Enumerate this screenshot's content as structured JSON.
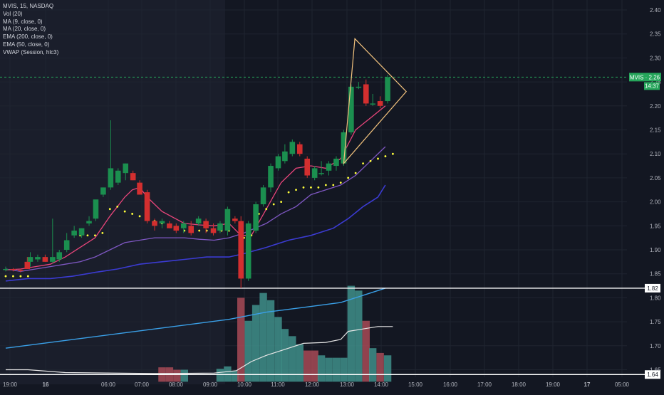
{
  "legend": {
    "symbol": "MVIS, 15, NASDAQ",
    "indicators": [
      "Vol (20)",
      "MA (9, close, 0)",
      "MA (20, close, 0)",
      "EMA (200, close, 0)",
      "EMA (50, close, 0)",
      "VWAP (Session, hlc3)"
    ]
  },
  "price_tag": {
    "label": "MVIS · 2.26",
    "value": 2.26,
    "countdown": "14:37"
  },
  "level_tags": [
    {
      "label": "1.82",
      "value": 1.82
    },
    {
      "label": "1.64",
      "value": 1.64
    }
  ],
  "colors": {
    "background": "#131722",
    "session_shade": "#1a1e2b",
    "grid": "#1f2430",
    "up": "#26a69a",
    "up_body": "#1b8f4f",
    "down": "#d32f2f",
    "vol_up": "#3f8f8a",
    "vol_down": "#a84a56",
    "ma9": "#e8457a",
    "ma20": "#7e57c2",
    "ema200": "#3aa0e8",
    "ema50": "#3b3bd1",
    "vwap": "#ffff3b",
    "last_price": "#26a65b",
    "triangle": "#f2c27d",
    "level_line": "#ffffff"
  },
  "chart_data": {
    "type": "candlestick",
    "x_axis": {
      "ticks": [
        "19:00",
        "16",
        "06:00",
        "07:00",
        "08:00",
        "09:00",
        "10:00",
        "11:00",
        "12:00",
        "13:00",
        "14:00",
        "15:00",
        "16:00",
        "17:00",
        "18:00",
        "19:00",
        "17",
        "05:00"
      ]
    },
    "y_axis": {
      "ticks": [
        "2.40",
        "2.35",
        "2.30",
        "2.25",
        "2.20",
        "2.15",
        "2.10",
        "2.05",
        "2.00",
        "1.95",
        "1.90",
        "1.85",
        "1.80",
        "1.75",
        "1.70",
        "1.65"
      ],
      "ylim": [
        1.625,
        2.415
      ]
    },
    "candles": [
      {
        "t": 0.0,
        "o": 1.86,
        "h": 1.865,
        "l": 1.855,
        "c": 1.86
      },
      {
        "t": 1.0,
        "o": 1.86,
        "h": 1.862,
        "l": 1.855,
        "c": 1.858
      },
      {
        "t": 2.0,
        "o": 1.858,
        "h": 1.86,
        "l": 1.853,
        "c": 1.857
      },
      {
        "t": 2.9,
        "o": 1.875,
        "h": 1.885,
        "l": 1.86,
        "c": 1.86
      },
      {
        "t": 3.3,
        "o": 1.875,
        "h": 1.895,
        "l": 1.865,
        "c": 1.885
      },
      {
        "t": 4.3,
        "o": 1.88,
        "h": 1.89,
        "l": 1.875,
        "c": 1.885
      },
      {
        "t": 5.3,
        "o": 1.885,
        "h": 1.89,
        "l": 1.875,
        "c": 1.875
      },
      {
        "t": 6.3,
        "o": 1.875,
        "h": 1.965,
        "l": 1.872,
        "c": 1.885
      },
      {
        "t": 7.2,
        "o": 1.88,
        "h": 1.9,
        "l": 1.875,
        "c": 1.895
      },
      {
        "t": 8.2,
        "o": 1.9,
        "h": 1.935,
        "l": 1.895,
        "c": 1.92
      },
      {
        "t": 9.2,
        "o": 1.93,
        "h": 1.95,
        "l": 1.925,
        "c": 1.94
      },
      {
        "t": 10.2,
        "o": 1.93,
        "h": 1.945,
        "l": 1.925,
        "c": 1.945
      },
      {
        "t": 11.2,
        "o": 1.955,
        "h": 1.97,
        "l": 1.95,
        "c": 1.96
      },
      {
        "t": 12.1,
        "o": 1.965,
        "h": 2.0,
        "l": 1.96,
        "c": 2.005
      },
      {
        "t": 13.1,
        "o": 2.015,
        "h": 2.03,
        "l": 2.01,
        "c": 2.03
      },
      {
        "t": 14.1,
        "o": 2.03,
        "h": 2.17,
        "l": 2.025,
        "c": 2.07
      },
      {
        "t": 15.1,
        "o": 2.04,
        "h": 2.07,
        "l": 2.035,
        "c": 2.065
      },
      {
        "t": 16.1,
        "o": 2.06,
        "h": 2.08,
        "l": 2.045,
        "c": 2.08
      },
      {
        "t": 17.1,
        "o": 2.06,
        "h": 2.065,
        "l": 2.045,
        "c": 2.045
      },
      {
        "t": 18.0,
        "o": 2.04,
        "h": 2.045,
        "l": 2.015,
        "c": 2.015
      },
      {
        "t": 19.0,
        "o": 2.02,
        "h": 2.025,
        "l": 1.955,
        "c": 1.96
      },
      {
        "t": 20.0,
        "o": 1.96,
        "h": 1.965,
        "l": 1.94,
        "c": 1.95
      },
      {
        "t": 21.0,
        "o": 1.955,
        "h": 1.965,
        "l": 1.945,
        "c": 1.96
      },
      {
        "t": 22.0,
        "o": 1.955,
        "h": 1.96,
        "l": 1.945,
        "c": 1.945
      },
      {
        "t": 22.9,
        "o": 1.95,
        "h": 1.955,
        "l": 1.935,
        "c": 1.94
      },
      {
        "t": 23.9,
        "o": 1.945,
        "h": 1.96,
        "l": 1.935,
        "c": 1.955
      },
      {
        "t": 24.9,
        "o": 1.95,
        "h": 1.96,
        "l": 1.93,
        "c": 1.935
      },
      {
        "t": 25.9,
        "o": 1.955,
        "h": 1.97,
        "l": 1.95,
        "c": 1.965
      },
      {
        "t": 26.9,
        "o": 1.96,
        "h": 1.965,
        "l": 1.935,
        "c": 1.945
      },
      {
        "t": 27.9,
        "o": 1.945,
        "h": 1.955,
        "l": 1.93,
        "c": 1.935
      },
      {
        "t": 28.8,
        "o": 1.94,
        "h": 1.96,
        "l": 1.935,
        "c": 1.955
      },
      {
        "t": 29.8,
        "o": 1.94,
        "h": 1.99,
        "l": 1.93,
        "c": 1.985
      },
      {
        "t": 30.8,
        "o": 1.965,
        "h": 1.97,
        "l": 1.955,
        "c": 1.96
      },
      {
        "t": 31.6,
        "o": 1.96,
        "h": 1.97,
        "l": 1.82,
        "c": 1.84
      },
      {
        "t": 32.6,
        "o": 1.84,
        "h": 1.96,
        "l": 1.835,
        "c": 1.955
      },
      {
        "t": 33.6,
        "o": 1.94,
        "h": 2.0,
        "l": 1.935,
        "c": 1.995
      },
      {
        "t": 34.6,
        "o": 1.995,
        "h": 2.035,
        "l": 1.99,
        "c": 2.03
      },
      {
        "t": 35.6,
        "o": 2.03,
        "h": 2.08,
        "l": 2.02,
        "c": 2.075
      },
      {
        "t": 36.6,
        "o": 2.07,
        "h": 2.1,
        "l": 2.065,
        "c": 2.095
      },
      {
        "t": 37.5,
        "o": 2.085,
        "h": 2.12,
        "l": 2.08,
        "c": 2.105
      },
      {
        "t": 38.5,
        "o": 2.1,
        "h": 2.13,
        "l": 2.095,
        "c": 2.125
      },
      {
        "t": 39.5,
        "o": 2.12,
        "h": 2.125,
        "l": 2.095,
        "c": 2.1
      },
      {
        "t": 40.5,
        "o": 2.09,
        "h": 2.095,
        "l": 2.05,
        "c": 2.055
      },
      {
        "t": 41.5,
        "o": 2.05,
        "h": 2.075,
        "l": 2.045,
        "c": 2.07
      },
      {
        "t": 42.4,
        "o": 2.06,
        "h": 2.085,
        "l": 2.055,
        "c": 2.06
      },
      {
        "t": 43.4,
        "o": 2.065,
        "h": 2.085,
        "l": 2.055,
        "c": 2.08
      },
      {
        "t": 44.4,
        "o": 2.075,
        "h": 2.095,
        "l": 2.065,
        "c": 2.09
      },
      {
        "t": 45.4,
        "o": 2.08,
        "h": 2.15,
        "l": 2.075,
        "c": 2.145
      },
      {
        "t": 46.4,
        "o": 2.145,
        "h": 2.245,
        "l": 2.14,
        "c": 2.24
      },
      {
        "t": 47.4,
        "o": 2.24,
        "h": 2.25,
        "l": 2.235,
        "c": 2.24
      },
      {
        "t": 48.4,
        "o": 2.245,
        "h": 2.255,
        "l": 2.2,
        "c": 2.205
      },
      {
        "t": 49.3,
        "o": 2.205,
        "h": 2.225,
        "l": 2.2,
        "c": 2.205
      },
      {
        "t": 50.3,
        "o": 2.21,
        "h": 2.22,
        "l": 2.195,
        "c": 2.2
      },
      {
        "t": 51.3,
        "o": 2.21,
        "h": 2.265,
        "l": 2.205,
        "c": 2.26
      }
    ],
    "volume_scale": {
      "ticks": [
        "1.80",
        "1.75",
        "1.70",
        "1.65"
      ]
    },
    "volume_bars": [
      {
        "t": 21.0,
        "v": 1.655,
        "up": false
      },
      {
        "t": 22.0,
        "v": 1.655,
        "up": false
      },
      {
        "t": 23.0,
        "v": 1.65,
        "up": false
      },
      {
        "t": 24.0,
        "v": 1.65,
        "up": true
      },
      {
        "t": 28.8,
        "v": 1.652,
        "up": true
      },
      {
        "t": 29.8,
        "v": 1.657,
        "up": true
      },
      {
        "t": 30.8,
        "v": 1.648,
        "up": true
      },
      {
        "t": 31.6,
        "v": 1.8,
        "up": false
      },
      {
        "t": 32.6,
        "v": 1.752,
        "up": true
      },
      {
        "t": 33.6,
        "v": 1.785,
        "up": true
      },
      {
        "t": 34.6,
        "v": 1.81,
        "up": true
      },
      {
        "t": 35.6,
        "v": 1.795,
        "up": true
      },
      {
        "t": 36.6,
        "v": 1.76,
        "up": true
      },
      {
        "t": 37.5,
        "v": 1.735,
        "up": true
      },
      {
        "t": 38.5,
        "v": 1.72,
        "up": true
      },
      {
        "t": 39.5,
        "v": 1.703,
        "up": true
      },
      {
        "t": 40.5,
        "v": 1.69,
        "up": false
      },
      {
        "t": 41.5,
        "v": 1.69,
        "up": false
      },
      {
        "t": 42.4,
        "v": 1.68,
        "up": true
      },
      {
        "t": 43.4,
        "v": 1.675,
        "up": true
      },
      {
        "t": 44.4,
        "v": 1.675,
        "up": true
      },
      {
        "t": 45.4,
        "v": 1.675,
        "up": true
      },
      {
        "t": 46.4,
        "v": 1.825,
        "up": true
      },
      {
        "t": 47.4,
        "v": 1.815,
        "up": true
      },
      {
        "t": 48.4,
        "v": 1.752,
        "up": false
      },
      {
        "t": 49.3,
        "v": 1.695,
        "up": true
      },
      {
        "t": 50.3,
        "v": 1.685,
        "up": false
      },
      {
        "t": 51.3,
        "v": 1.68,
        "up": true
      }
    ],
    "lines": {
      "ma9": [
        [
          0,
          1.858
        ],
        [
          2,
          1.86
        ],
        [
          4,
          1.865
        ],
        [
          6,
          1.87
        ],
        [
          8,
          1.885
        ],
        [
          10,
          1.905
        ],
        [
          12,
          1.925
        ],
        [
          14,
          1.97
        ],
        [
          16,
          2.01
        ],
        [
          17,
          2.025
        ],
        [
          18,
          2.03
        ],
        [
          19,
          2.01
        ],
        [
          21,
          1.98
        ],
        [
          24,
          1.955
        ],
        [
          26,
          1.952
        ],
        [
          28,
          1.95
        ],
        [
          30,
          1.955
        ],
        [
          31.6,
          1.93
        ],
        [
          33,
          1.93
        ],
        [
          35,
          1.985
        ],
        [
          37,
          2.04
        ],
        [
          39,
          2.07
        ],
        [
          41,
          2.075
        ],
        [
          43,
          2.07
        ],
        [
          45,
          2.09
        ],
        [
          47,
          2.15
        ],
        [
          49,
          2.175
        ],
        [
          51,
          2.2
        ]
      ],
      "ma20": [
        [
          0,
          1.86
        ],
        [
          2,
          1.855
        ],
        [
          4,
          1.86
        ],
        [
          6,
          1.865
        ],
        [
          8,
          1.87
        ],
        [
          10,
          1.875
        ],
        [
          12,
          1.885
        ],
        [
          14,
          1.9
        ],
        [
          16,
          1.915
        ],
        [
          18,
          1.92
        ],
        [
          20,
          1.925
        ],
        [
          22,
          1.925
        ],
        [
          24,
          1.925
        ],
        [
          26,
          1.922
        ],
        [
          28,
          1.92
        ],
        [
          30,
          1.925
        ],
        [
          32,
          1.935
        ],
        [
          35,
          1.955
        ],
        [
          37,
          1.975
        ],
        [
          39,
          1.99
        ],
        [
          41,
          2.015
        ],
        [
          43,
          2.025
        ],
        [
          45,
          2.035
        ],
        [
          47,
          2.055
        ],
        [
          49,
          2.085
        ],
        [
          51,
          2.115
        ]
      ],
      "ema50": [
        [
          0,
          1.835
        ],
        [
          3,
          1.84
        ],
        [
          6,
          1.84
        ],
        [
          9,
          1.845
        ],
        [
          12,
          1.853
        ],
        [
          15,
          1.86
        ],
        [
          18,
          1.87
        ],
        [
          21,
          1.875
        ],
        [
          24,
          1.88
        ],
        [
          27,
          1.885
        ],
        [
          30,
          1.885
        ],
        [
          32,
          1.892
        ],
        [
          35,
          1.905
        ],
        [
          38,
          1.92
        ],
        [
          41,
          1.93
        ],
        [
          44,
          1.945
        ],
        [
          46,
          1.965
        ],
        [
          48,
          1.99
        ],
        [
          50,
          2.01
        ],
        [
          51,
          2.035
        ]
      ],
      "vwap": [
        [
          0,
          1.845
        ],
        [
          1,
          1.845
        ],
        [
          2,
          1.845
        ],
        [
          3,
          1.845
        ],
        [
          10,
          1.93
        ],
        [
          11,
          1.93
        ],
        [
          12,
          1.93
        ],
        [
          13,
          1.935
        ],
        [
          14,
          1.985
        ],
        [
          15,
          1.99
        ],
        [
          16,
          1.98
        ],
        [
          17,
          1.975
        ],
        [
          18,
          1.97
        ],
        [
          19,
          1.965
        ],
        [
          20,
          1.96
        ],
        [
          21,
          1.955
        ],
        [
          22,
          1.95
        ],
        [
          23,
          1.945
        ],
        [
          24,
          1.94
        ],
        [
          25,
          1.94
        ],
        [
          26,
          1.94
        ],
        [
          27,
          1.94
        ],
        [
          28,
          1.94
        ],
        [
          29,
          1.94
        ],
        [
          30,
          1.94
        ],
        [
          32,
          1.925
        ],
        [
          33,
          1.93
        ],
        [
          34,
          1.975
        ],
        [
          35,
          1.985
        ],
        [
          36,
          1.995
        ],
        [
          37,
          2.0
        ],
        [
          38,
          2.02
        ],
        [
          39,
          2.025
        ],
        [
          40,
          2.03
        ],
        [
          41,
          2.03
        ],
        [
          42,
          2.03
        ],
        [
          43,
          2.035
        ],
        [
          44,
          2.035
        ],
        [
          45,
          2.04
        ],
        [
          46,
          2.05
        ],
        [
          47,
          2.06
        ],
        [
          48,
          2.08
        ],
        [
          49,
          2.085
        ],
        [
          50,
          2.09
        ],
        [
          51,
          2.095
        ],
        [
          52,
          2.1
        ]
      ],
      "ema200_vol": [
        [
          0,
          1.695
        ],
        [
          10,
          1.715
        ],
        [
          20,
          1.735
        ],
        [
          30,
          1.755
        ],
        [
          35,
          1.77
        ],
        [
          40,
          1.78
        ],
        [
          45,
          1.79
        ],
        [
          51,
          1.82
        ]
      ],
      "ema50_vol": [
        [
          0,
          1.65
        ],
        [
          3,
          1.65
        ],
        [
          8,
          1.644
        ],
        [
          20,
          1.642
        ],
        [
          28,
          1.643
        ],
        [
          31,
          1.648
        ],
        [
          33,
          1.667
        ],
        [
          35,
          1.68
        ],
        [
          38,
          1.695
        ],
        [
          40,
          1.705
        ],
        [
          43,
          1.707
        ],
        [
          45,
          1.713
        ],
        [
          46,
          1.73
        ],
        [
          48,
          1.735
        ],
        [
          50,
          1.74
        ],
        [
          52,
          1.74
        ]
      ]
    },
    "triangle": [
      [
        45.4,
        2.08
      ],
      [
        46.9,
        2.34
      ],
      [
        53.8,
        2.23
      ]
    ]
  }
}
